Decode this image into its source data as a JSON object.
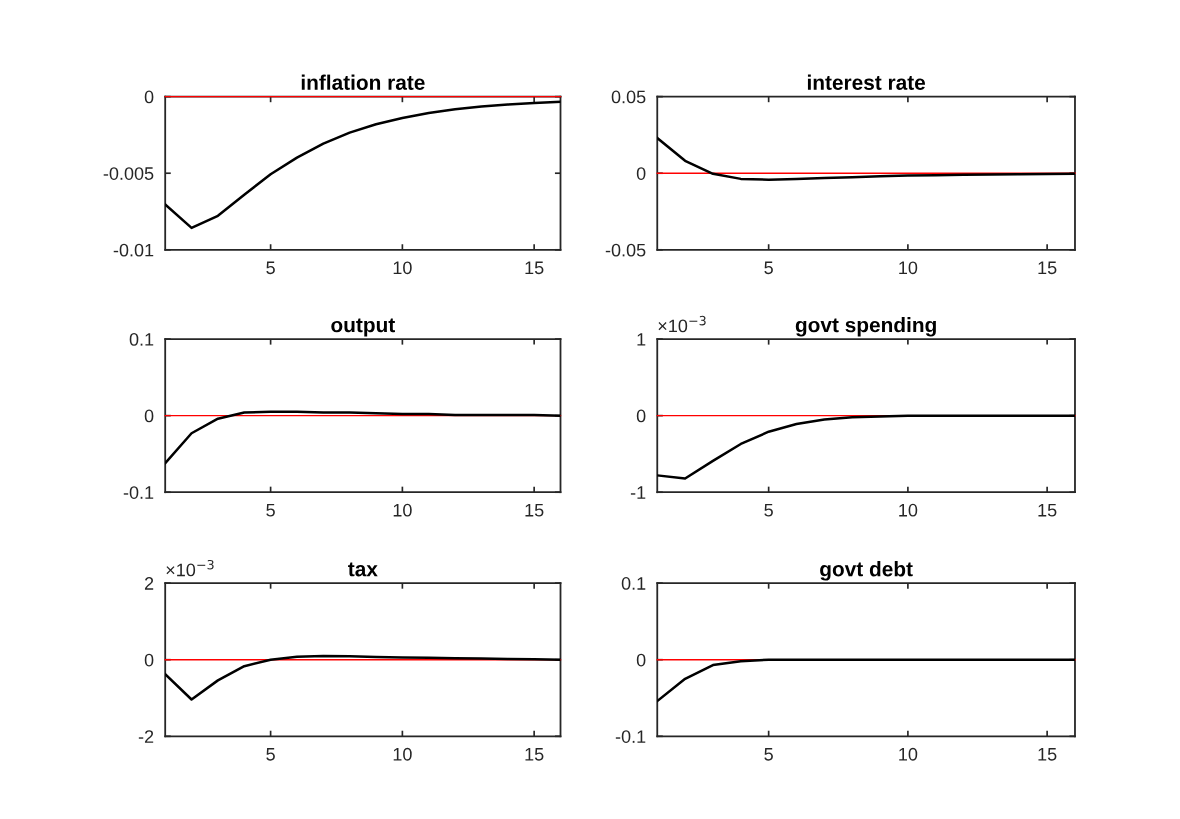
{
  "chart_data": [
    {
      "type": "line",
      "title": "inflation rate",
      "x": [
        1,
        2,
        3,
        4,
        5,
        6,
        7,
        8,
        9,
        10,
        11,
        12,
        13,
        14,
        15,
        16
      ],
      "xlim": [
        1,
        16
      ],
      "xticks": [
        5,
        10,
        15
      ],
      "ylim": [
        -0.01,
        0
      ],
      "yticks": [
        -0.01,
        -0.005,
        0
      ],
      "series": [
        {
          "color": "#000000",
          "values": [
            -0.00704,
            -0.00857,
            -0.00778,
            -0.0064,
            -0.00507,
            -0.00398,
            -0.00307,
            -0.00235,
            -0.0018,
            -0.00139,
            -0.00107,
            -0.00083,
            -0.00065,
            -0.00052,
            -0.00041,
            -0.00033
          ]
        }
      ],
      "ref_lines": [
        {
          "axis": "y",
          "value": 0,
          "color": "#ff0000"
        }
      ]
    },
    {
      "type": "line",
      "title": "interest rate",
      "x": [
        1,
        2,
        3,
        4,
        5,
        6,
        7,
        8,
        9,
        10,
        11,
        12,
        13,
        14,
        15,
        16
      ],
      "xlim": [
        1,
        16
      ],
      "xticks": [
        5,
        10,
        15
      ],
      "ylim": [
        -0.05,
        0.05
      ],
      "yticks": [
        -0.05,
        0,
        0.05
      ],
      "series": [
        {
          "color": "#000000",
          "values": [
            0.023,
            0.0081,
            -0.0004,
            -0.0037,
            -0.0042,
            -0.0037,
            -0.0031,
            -0.0026,
            -0.002,
            -0.0015,
            -0.0013,
            -0.001,
            -0.0008,
            -0.0006,
            -0.0005,
            -0.0004
          ]
        }
      ],
      "ref_lines": [
        {
          "axis": "y",
          "value": 0,
          "color": "#ff0000"
        }
      ]
    },
    {
      "type": "line",
      "title": "output",
      "x": [
        1,
        2,
        3,
        4,
        5,
        6,
        7,
        8,
        9,
        10,
        11,
        12,
        13,
        14,
        15,
        16
      ],
      "xlim": [
        1,
        16
      ],
      "xticks": [
        5,
        10,
        15
      ],
      "ylim": [
        -0.1,
        0.1
      ],
      "yticks": [
        -0.1,
        0,
        0.1
      ],
      "series": [
        {
          "color": "#000000",
          "values": [
            -0.062,
            -0.023,
            -0.004,
            0.004,
            0.005,
            0.005,
            0.004,
            0.004,
            0.003,
            0.002,
            0.002,
            0.001,
            0.001,
            0.001,
            0.001,
            0
          ]
        }
      ],
      "ref_lines": [
        {
          "axis": "y",
          "value": 0,
          "color": "#ff0000"
        }
      ]
    },
    {
      "type": "line",
      "title": "govt spending",
      "x": [
        1,
        2,
        3,
        4,
        5,
        6,
        7,
        8,
        9,
        10,
        11,
        12,
        13,
        14,
        15,
        16
      ],
      "xlim": [
        1,
        16
      ],
      "xticks": [
        5,
        10,
        15
      ],
      "ylim": [
        -1,
        1
      ],
      "yticks": [
        {
          "value": -1,
          "label": "-1"
        },
        0,
        1
      ],
      "series": [
        {
          "color": "#000000",
          "values": [
            -0.78,
            -0.82,
            -0.59,
            -0.37,
            -0.21,
            -0.11,
            -0.05,
            -0.02,
            -0.01,
            0,
            0,
            0,
            0,
            0,
            0,
            0
          ]
        }
      ],
      "ref_lines": [
        {
          "axis": "y",
          "value": 0,
          "color": "#ff0000"
        }
      ],
      "annotations": [
        "×10$^{−3}$"
      ]
    },
    {
      "type": "line",
      "title": "tax",
      "x": [
        1,
        2,
        3,
        4,
        5,
        6,
        7,
        8,
        9,
        10,
        11,
        12,
        13,
        14,
        15,
        16
      ],
      "xlim": [
        1,
        16
      ],
      "xticks": [
        5,
        10,
        15
      ],
      "ylim": [
        -2,
        2
      ],
      "yticks": [
        {
          "value": -2,
          "label": "-2"
        },
        0,
        2
      ],
      "series": [
        {
          "color": "#000000",
          "values": [
            -0.38,
            -1.04,
            -0.54,
            -0.17,
            0,
            0.08,
            0.1,
            0.09,
            0.07,
            0.06,
            0.05,
            0.04,
            0.03,
            0.02,
            0.01,
            0
          ]
        }
      ],
      "ref_lines": [
        {
          "axis": "y",
          "value": 0,
          "color": "#ff0000"
        }
      ],
      "annotations": [
        "×10$^{−3}$"
      ]
    },
    {
      "type": "line",
      "title": "govt debt",
      "x": [
        1,
        2,
        3,
        4,
        5,
        6,
        7,
        8,
        9,
        10,
        11,
        12,
        13,
        14,
        15,
        16
      ],
      "xlim": [
        1,
        16
      ],
      "xticks": [
        5,
        10,
        15
      ],
      "ylim": [
        -0.1,
        0.1
      ],
      "yticks": [
        -0.1,
        0,
        0.1
      ],
      "series": [
        {
          "color": "#000000",
          "values": [
            -0.054,
            -0.025,
            -0.007,
            -0.002,
            0,
            0,
            0,
            0,
            0,
            0,
            0,
            0,
            0,
            0,
            0,
            0
          ]
        }
      ],
      "ref_lines": [
        {
          "axis": "y",
          "value": 0,
          "color": "#ff0000"
        }
      ]
    }
  ]
}
